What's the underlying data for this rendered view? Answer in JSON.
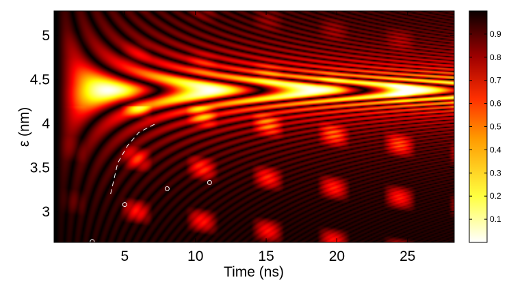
{
  "chart_data": {
    "type": "heatmap",
    "title": "",
    "xlabel": "Time (ns)",
    "ylabel": "ε (nm)",
    "xlim": [
      0,
      28.3
    ],
    "ylim": [
      2.65,
      5.28
    ],
    "xticks": [
      5,
      10,
      15,
      20,
      25
    ],
    "yticks": [
      3,
      3.5,
      4,
      4.5,
      5
    ],
    "colorbar": {
      "colormap": "hot (reversed)",
      "ticks": [
        0.1,
        0.2,
        0.3,
        0.4,
        0.5,
        0.6,
        0.7,
        0.8,
        0.9
      ],
      "range": [
        0,
        1
      ]
    },
    "features": {
      "bright_band_epsilon": 4.38,
      "bright_lobe_times": [
        3.8,
        11.0,
        18.4,
        26.0
      ],
      "lobe_period_ns": 7.3
    },
    "dashed_curve": [
      [
        4.0,
        3.2
      ],
      [
        4.5,
        3.55
      ],
      [
        5.2,
        3.75
      ],
      [
        6.0,
        3.9
      ],
      [
        7.2,
        4.0
      ]
    ],
    "circle_markers": [
      [
        2.7,
        2.66
      ],
      [
        5.0,
        3.08
      ],
      [
        8.0,
        3.26
      ],
      [
        11.0,
        3.33
      ]
    ]
  }
}
